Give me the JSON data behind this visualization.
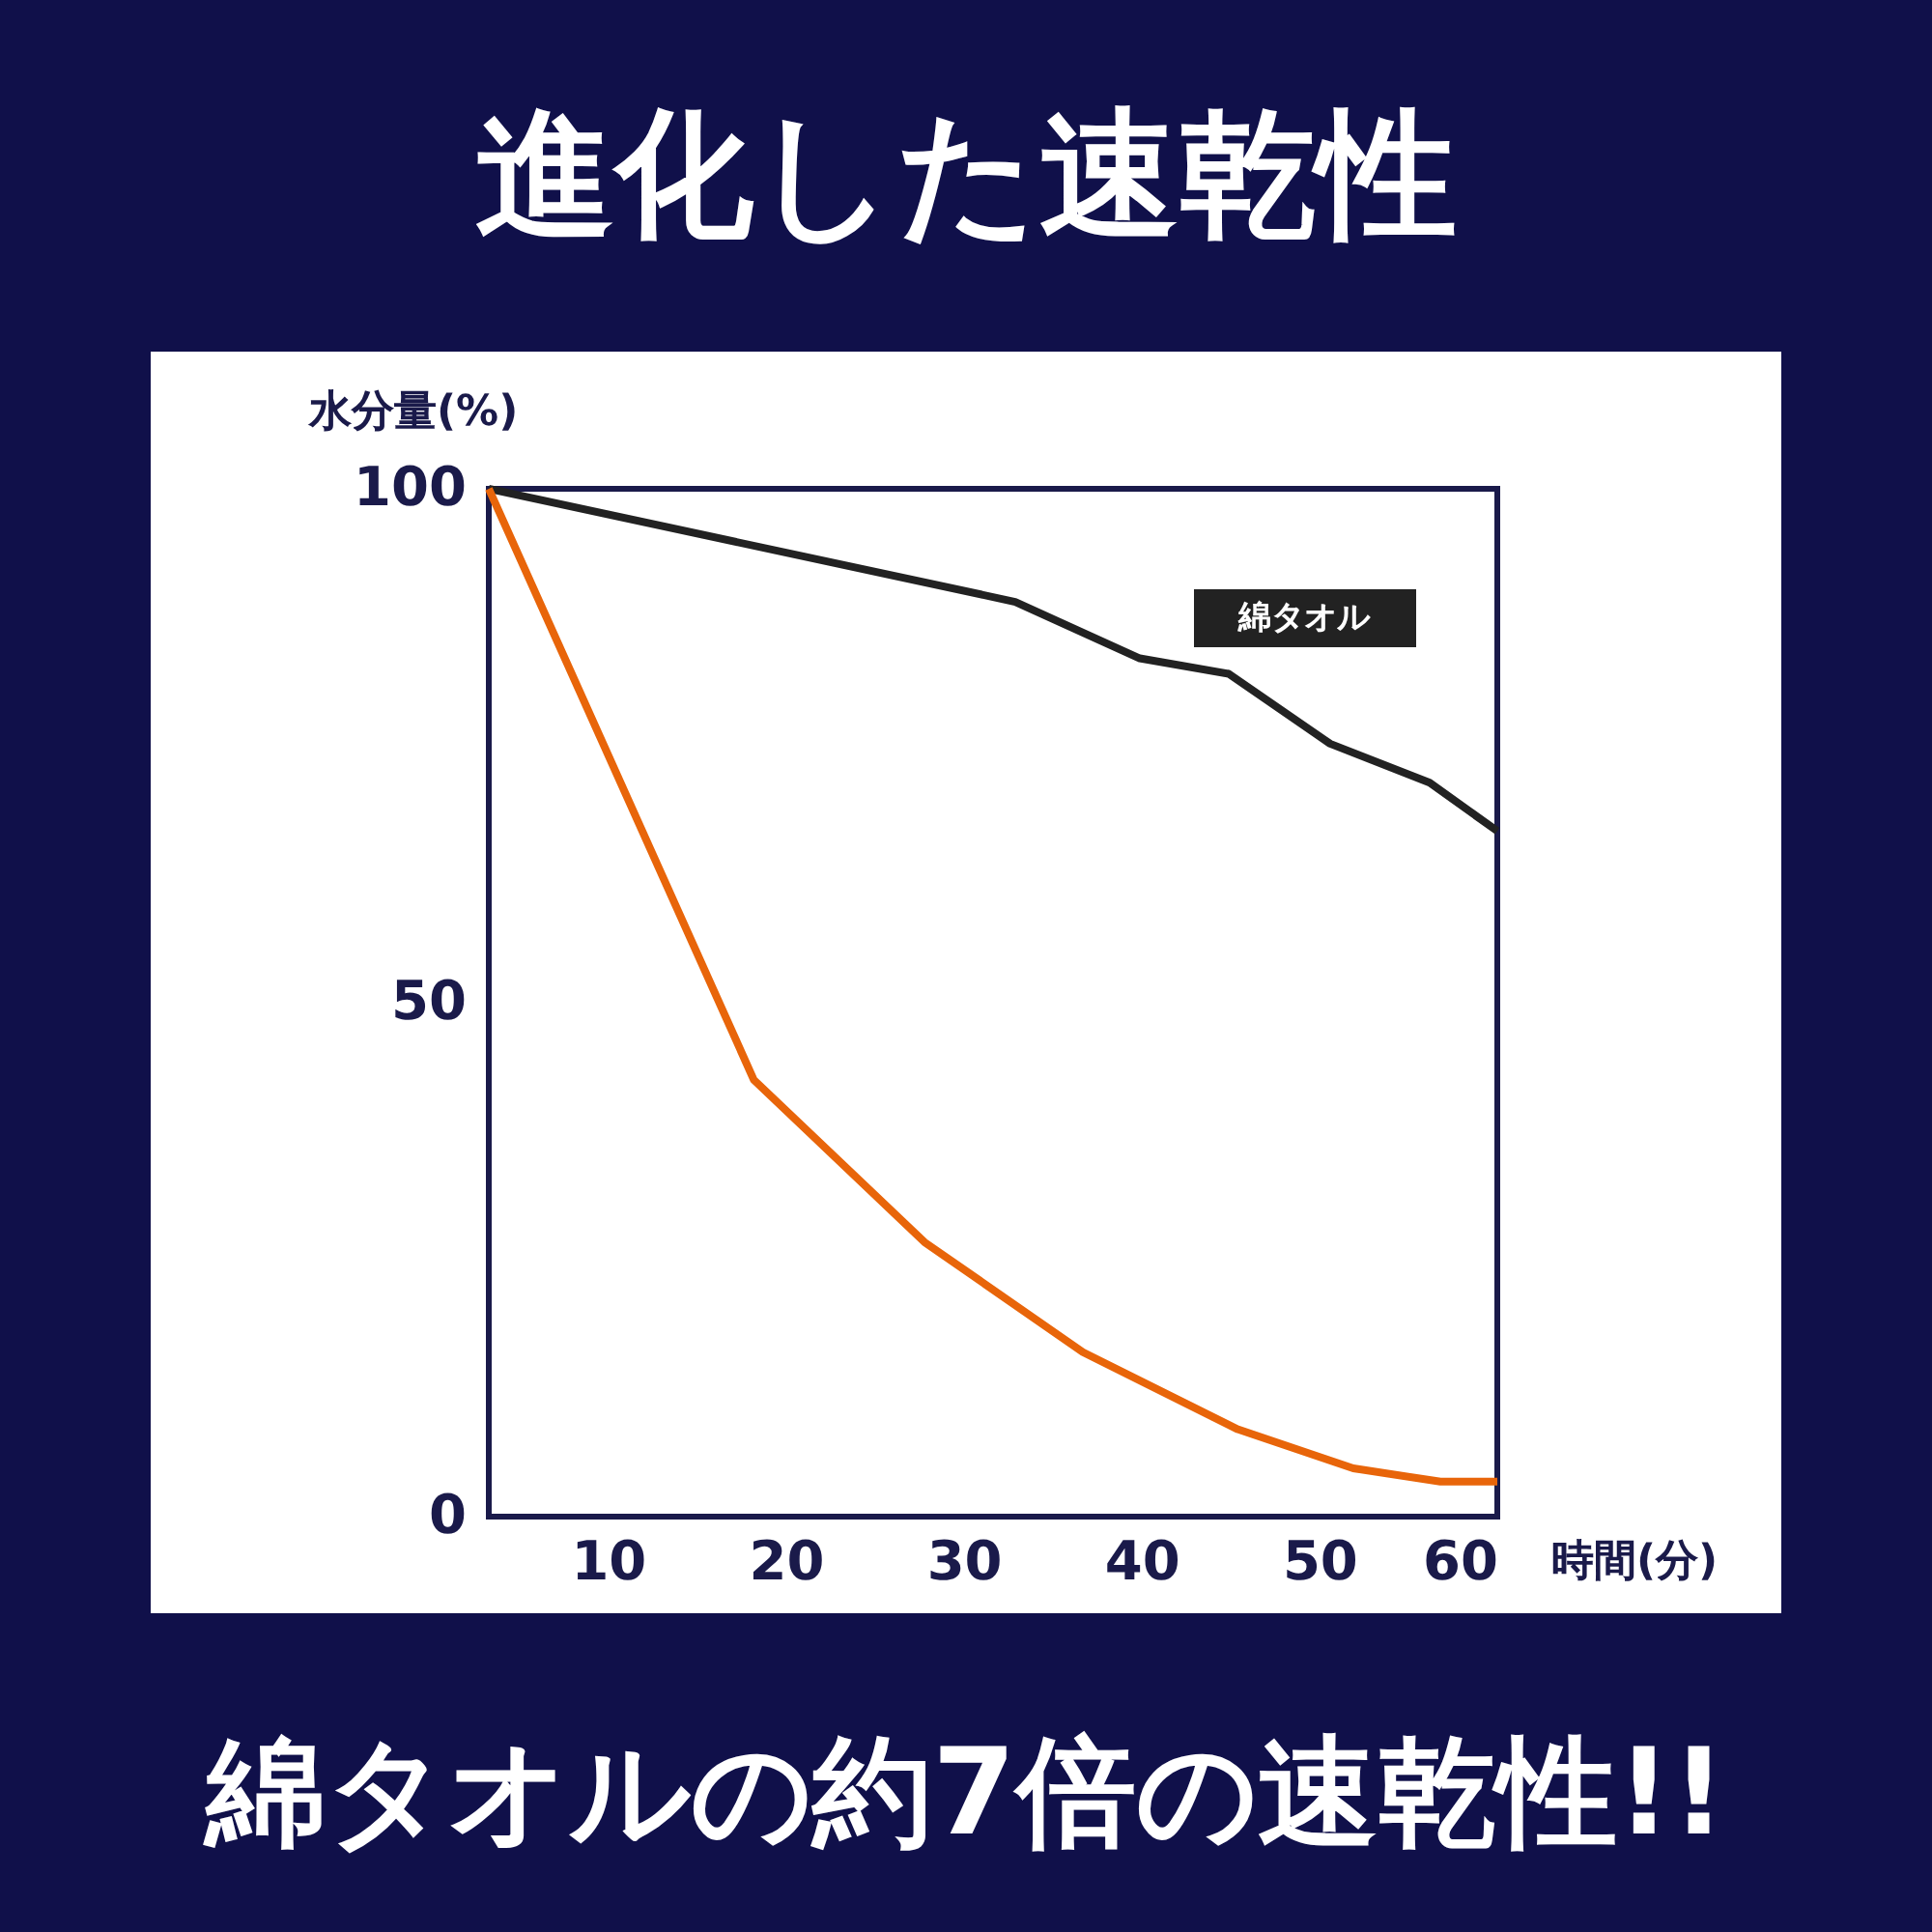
{
  "chart_data": {
    "type": "line",
    "title": "進化した速乾性",
    "annotations": [
      "綿タオルの約7倍の速乾性!!"
    ],
    "xlabel": "時間(分)",
    "ylabel": "水分量(%)",
    "xlim": [
      3.3,
      60
    ],
    "ylim": [
      0,
      100
    ],
    "xticks": [
      10,
      20,
      30,
      40,
      50,
      60
    ],
    "yticks": [
      0,
      50,
      100
    ],
    "line_style": "solid",
    "series": [
      {
        "name": "綿タオル",
        "color": "#222222",
        "x": [
          3.3,
          32.9,
          39.9,
          44.9,
          50.6,
          56.2,
          60
        ],
        "values": [
          100,
          89,
          83.5,
          82,
          75.2,
          71.4,
          66.7
        ]
      },
      {
        "color": "#e8650a",
        "x": [
          3.3,
          18.2,
          27.8,
          36.7,
          45.4,
          51.9,
          56.8,
          60
        ],
        "values": [
          100,
          42.5,
          26.7,
          16,
          8.5,
          4.7,
          3.4,
          3.4
        ]
      }
    ]
  }
}
